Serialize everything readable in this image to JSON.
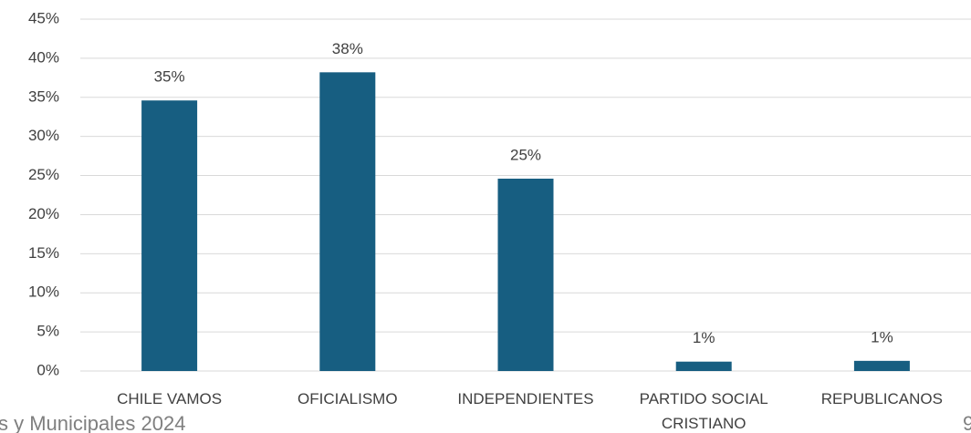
{
  "chart_data": {
    "type": "bar",
    "categories": [
      "CHILE VAMOS",
      "OFICIALISMO",
      "INDEPENDIENTES",
      "PARTIDO SOCIAL CRISTIANO",
      "REPUBLICANOS"
    ],
    "values": [
      34.6,
      38.2,
      24.6,
      1.2,
      1.3
    ],
    "value_labels": [
      "35%",
      "38%",
      "25%",
      "1%",
      "1%"
    ],
    "color": "#175e81",
    "ylim": [
      0,
      45
    ],
    "yticks": [
      {
        "value": 0,
        "label": "0%"
      },
      {
        "value": 5,
        "label": "5%"
      },
      {
        "value": 10,
        "label": "10%"
      },
      {
        "value": 15,
        "label": "15%"
      },
      {
        "value": 20,
        "label": "20%"
      },
      {
        "value": 25,
        "label": "25%"
      },
      {
        "value": 30,
        "label": "30%"
      },
      {
        "value": 35,
        "label": "35%"
      },
      {
        "value": 40,
        "label": "40%"
      },
      {
        "value": 45,
        "label": "45%"
      }
    ],
    "grid": true,
    "annotations": [
      "s y Municipales 2024",
      "9"
    ]
  }
}
